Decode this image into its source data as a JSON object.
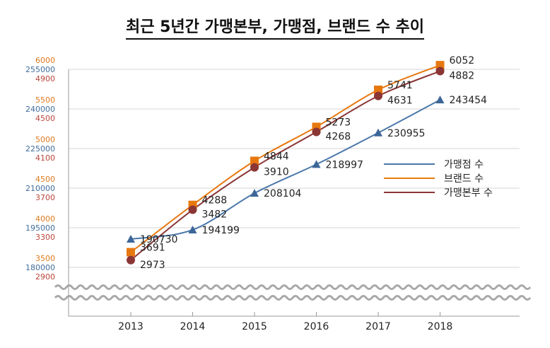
{
  "title": "최근 5년간 가맹본부, 가맹점, 브랜드 수 추이",
  "chart_data": {
    "type": "line",
    "title": "최근 5년간 가맹본부, 가맹점, 브랜드 수 추이",
    "categories": [
      "2013",
      "2014",
      "2015",
      "2016",
      "2017",
      "2018"
    ],
    "axis_break": true,
    "legend_position": "right",
    "series": [
      {
        "name": "가맹점 수",
        "values": [
          190730,
          194199,
          208104,
          218997,
          230955,
          243454
        ],
        "labels": [
          "190730",
          "194199",
          "208104",
          "218997",
          "230955",
          "243454"
        ],
        "marker": "triangle",
        "color": "#4a78aa",
        "ylim": [
          180000,
          255000
        ],
        "ticks": [
          "180000",
          "195000",
          "210000",
          "225000",
          "240000",
          "255000"
        ],
        "tick_values": [
          180000,
          195000,
          210000,
          225000,
          240000,
          255000
        ],
        "tick_color": "#3f6d9c"
      },
      {
        "name": "브랜드 수",
        "values": [
          3691,
          4288,
          4844,
          5273,
          5741,
          6052
        ],
        "labels": [
          "3691",
          "4288",
          "4844",
          "5273",
          "5741",
          "6052"
        ],
        "marker": "square",
        "color": "#e7780f",
        "ylim": [
          3500,
          6000
        ],
        "ticks": [
          "3500",
          "4000",
          "4500",
          "5000",
          "5500",
          "6000"
        ],
        "tick_values": [
          3500,
          4000,
          4500,
          5000,
          5500,
          6000
        ],
        "tick_color": "#de7a1e"
      },
      {
        "name": "가맹본부 수",
        "values": [
          2973,
          3482,
          3910,
          4268,
          4631,
          4882
        ],
        "labels": [
          "2973",
          "3482",
          "3910",
          "4268",
          "4631",
          "4882"
        ],
        "marker": "circle",
        "color": "#8b3535",
        "ylim": [
          2900,
          4900
        ],
        "ticks": [
          "2900",
          "3300",
          "3700",
          "4100",
          "4500",
          "4900"
        ],
        "tick_values": [
          2900,
          3300,
          3700,
          4100,
          4500,
          4900
        ],
        "tick_color": "#b9463a"
      }
    ]
  }
}
